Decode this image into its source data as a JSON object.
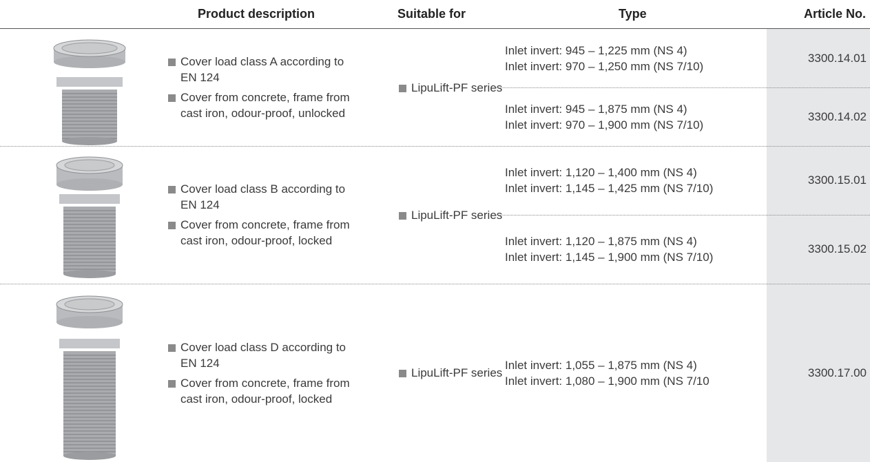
{
  "header": {
    "columns": [
      "Product description",
      "Suitable for",
      "Type",
      "Article No."
    ]
  },
  "table": {
    "groups": [
      {
        "description": [
          "Cover load class A according to EN 124",
          "Cover from concrete, frame from cast iron, odour-proof, unlocked"
        ],
        "suitable": "LipuLift-PF series",
        "variants": [
          {
            "type": [
              "Inlet invert: 945 – 1,225 mm (NS 4)",
              "Inlet invert: 970 – 1,250 mm (NS 7/10)"
            ],
            "article": "3300.14.01"
          },
          {
            "type": [
              "Inlet invert: 945 – 1,875 mm (NS 4)",
              "Inlet invert: 970 – 1,900 mm (NS 7/10)"
            ],
            "article": "3300.14.02"
          }
        ]
      },
      {
        "description": [
          "Cover load class B according to EN 124",
          "Cover from concrete, frame from cast iron, odour-proof, locked"
        ],
        "suitable": "LipuLift-PF series",
        "variants": [
          {
            "type": [
              "Inlet invert: 1,120 – 1,400 mm (NS 4)",
              "Inlet invert: 1,145 – 1,425 mm (NS 7/10)"
            ],
            "article": "3300.15.01"
          },
          {
            "type": [
              "Inlet invert: 1,120 – 1,875 mm (NS 4)",
              "Inlet invert: 1,145 – 1,900 mm (NS 7/10)"
            ],
            "article": "3300.15.02"
          }
        ]
      },
      {
        "description": [
          "Cover load class D according to EN 124",
          "Cover from concrete, frame from cast iron, odour-proof, locked"
        ],
        "suitable": "LipuLift-PF series",
        "variants": [
          {
            "type": [
              "Inlet invert: 1,055 – 1,875 mm (NS 4)",
              "Inlet invert: 1,080 – 1,900 mm (NS 7/10"
            ],
            "article": "3300.17.00"
          }
        ]
      }
    ]
  }
}
